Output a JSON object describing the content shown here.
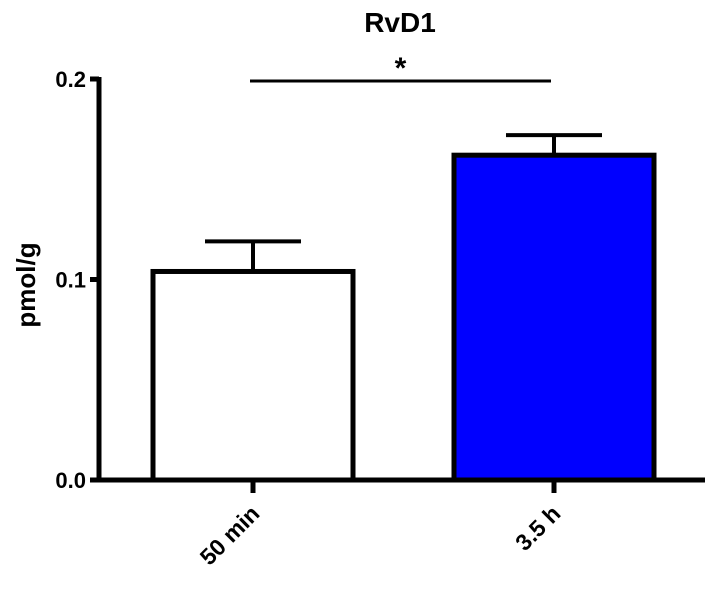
{
  "chart_data": {
    "type": "bar",
    "title": "RvD1",
    "xlabel": "",
    "ylabel": "pmol/g",
    "categories": [
      "50 min",
      "3.5 h"
    ],
    "values": [
      0.104,
      0.162
    ],
    "error_bars": [
      0.015,
      0.01
    ],
    "bar_colors": [
      "#ffffff",
      "#0000ff"
    ],
    "ylim": [
      0.0,
      0.2
    ],
    "yticks": [
      0.0,
      0.1,
      0.2
    ],
    "ytick_labels": [
      "0.0",
      "0.1",
      "0.2"
    ],
    "significance": {
      "between": [
        "50 min",
        "3.5 h"
      ],
      "label": "*"
    },
    "grid": false,
    "legend": "none"
  }
}
